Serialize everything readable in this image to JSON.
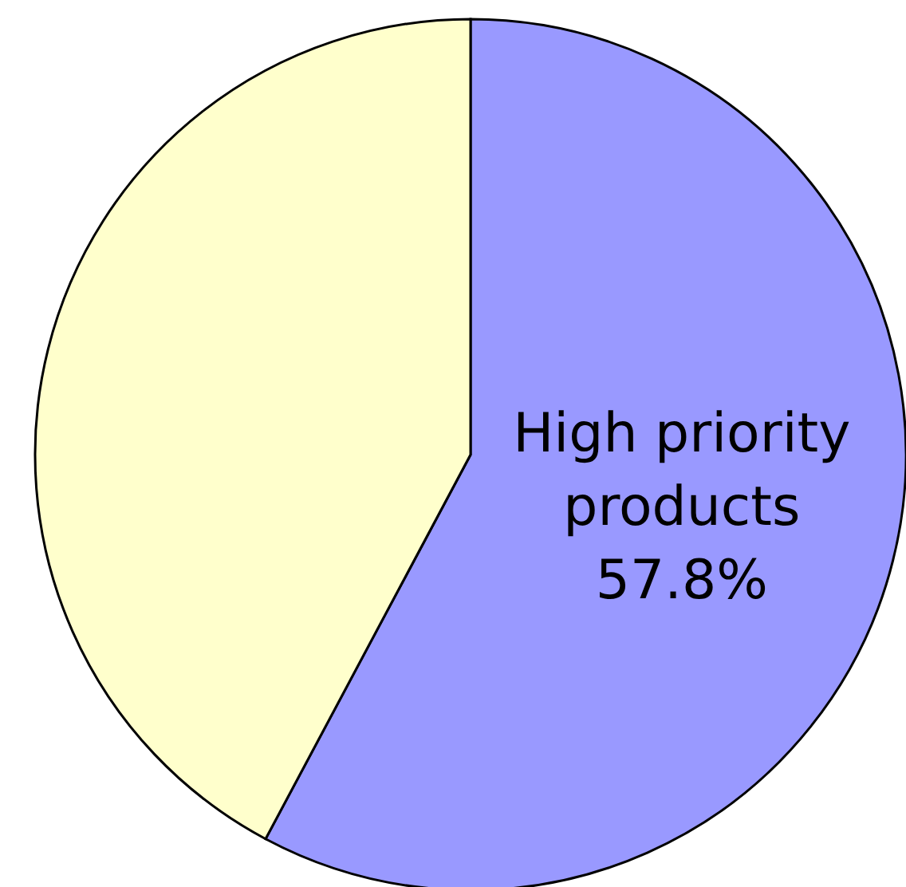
{
  "chart_data": {
    "type": "pie",
    "categories": [
      "High priority products",
      null
    ],
    "values": [
      57.8,
      42.2
    ],
    "colors": [
      "#9999ff",
      "#ffffcc"
    ],
    "value_labels": [
      "57.8%",
      null
    ]
  }
}
